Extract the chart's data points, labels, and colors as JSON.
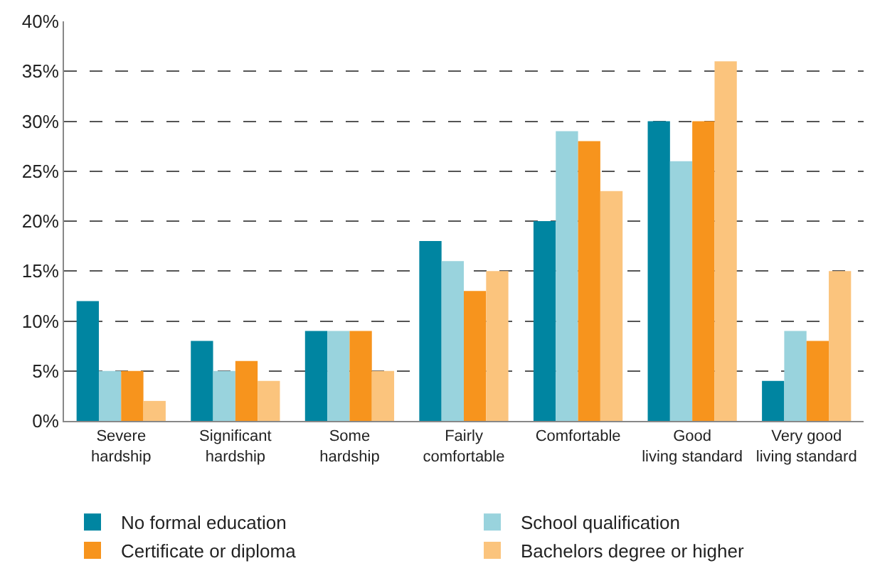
{
  "chart_data": {
    "type": "bar",
    "categories": [
      "Severe hardship",
      "Significant hardship",
      "Some hardship",
      "Fairly comfortable",
      "Comfortable",
      "Good living standard",
      "Very good living standard"
    ],
    "series": [
      {
        "name": "No formal education",
        "color": "#0085a1",
        "values": [
          12,
          8,
          9,
          18,
          20,
          30,
          4
        ]
      },
      {
        "name": "School qualification",
        "color": "#99d3dd",
        "values": [
          5,
          5,
          9,
          16,
          29,
          26,
          9
        ]
      },
      {
        "name": "Certificate or diploma",
        "color": "#f7941d",
        "values": [
          5,
          6,
          9,
          13,
          28,
          30,
          8
        ]
      },
      {
        "name": "Bachelors degree or higher",
        "color": "#fbc47d",
        "values": [
          2,
          4,
          5,
          15,
          23,
          36,
          15
        ]
      }
    ],
    "ylim": [
      0,
      40
    ],
    "yticks": [
      {
        "value": 0,
        "label": "0%"
      },
      {
        "value": 5,
        "label": "5%"
      },
      {
        "value": 10,
        "label": "10%"
      },
      {
        "value": 15,
        "label": "15%"
      },
      {
        "value": 20,
        "label": "20%"
      },
      {
        "value": 25,
        "label": "25%"
      },
      {
        "value": 30,
        "label": "30%"
      },
      {
        "value": 35,
        "label": "35%"
      },
      {
        "value": 40,
        "label": "40%"
      }
    ],
    "grid": "y",
    "legend": "bottom"
  }
}
